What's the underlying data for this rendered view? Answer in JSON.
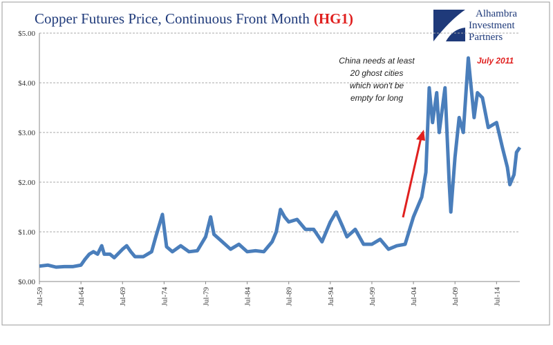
{
  "chart_data": {
    "type": "line",
    "title": "Copper Futures Price, Continuous Front Month",
    "title_code": "(HG1)",
    "logo": [
      "Alhambra",
      "Investment",
      "Partners"
    ],
    "annotations": [
      "China needs at least",
      "20 ghost cities",
      "which won't be",
      "empty for long"
    ],
    "peak_label": "July 2011",
    "x": [
      1959.5,
      1960.5,
      1961.5,
      1962.5,
      1963.5,
      1964.5,
      1965,
      1965.5,
      1966,
      1966.5,
      1967,
      1967.3,
      1968,
      1968.5,
      1969.5,
      1970,
      1970.5,
      1971,
      1972,
      1973,
      1973.5,
      1974.3,
      1974.8,
      1975.5,
      1976.5,
      1977.5,
      1978.5,
      1979.5,
      1980.1,
      1980.5,
      1981.5,
      1982.5,
      1983.5,
      1984.5,
      1985.5,
      1986.5,
      1987.5,
      1988,
      1988.5,
      1989,
      1989.5,
      1990.5,
      1991.5,
      1992.5,
      1993.5,
      1994.5,
      1995.2,
      1996,
      1996.5,
      1997.5,
      1998.5,
      1999.5,
      2000.5,
      2001.5,
      2002.5,
      2003.5,
      2004.5,
      2005.5,
      2006,
      2006.4,
      2006.8,
      2007.3,
      2007.6,
      2008.3,
      2008.8,
      2009,
      2009.5,
      2010,
      2010.5,
      2011.1,
      2011.8,
      2012.2,
      2012.8,
      2013.5,
      2014.5,
      2015.2,
      2015.8,
      2016.1,
      2016.6,
      2016.9,
      2017.3
    ],
    "series": [
      {
        "name": "HG1",
        "color": "#4a7ebb",
        "values": [
          0.31,
          0.33,
          0.29,
          0.3,
          0.3,
          0.33,
          0.45,
          0.55,
          0.6,
          0.55,
          0.72,
          0.55,
          0.55,
          0.48,
          0.65,
          0.72,
          0.6,
          0.5,
          0.5,
          0.6,
          0.9,
          1.35,
          0.7,
          0.6,
          0.72,
          0.6,
          0.62,
          0.9,
          1.3,
          0.95,
          0.8,
          0.65,
          0.75,
          0.6,
          0.62,
          0.6,
          0.8,
          1.0,
          1.45,
          1.3,
          1.2,
          1.25,
          1.05,
          1.05,
          0.8,
          1.2,
          1.4,
          1.1,
          0.9,
          1.05,
          0.75,
          0.75,
          0.85,
          0.65,
          0.72,
          0.75,
          1.3,
          1.7,
          2.2,
          3.9,
          3.2,
          3.8,
          3.0,
          3.9,
          2.0,
          1.4,
          2.5,
          3.3,
          3.0,
          4.5,
          3.3,
          3.8,
          3.7,
          3.1,
          3.2,
          2.7,
          2.3,
          1.95,
          2.15,
          2.6,
          2.7
        ]
      }
    ],
    "xlim": [
      1959.5,
      2017.3
    ],
    "xticks": [
      {
        "value": 1959.5,
        "label": "Jul-59"
      },
      {
        "value": 1964.5,
        "label": "Jul-64"
      },
      {
        "value": 1969.5,
        "label": "Jul-69"
      },
      {
        "value": 1974.5,
        "label": "Jul-74"
      },
      {
        "value": 1979.5,
        "label": "Jul-79"
      },
      {
        "value": 1984.5,
        "label": "Jul-84"
      },
      {
        "value": 1989.5,
        "label": "Jul-89"
      },
      {
        "value": 1994.5,
        "label": "Jul-94"
      },
      {
        "value": 1999.5,
        "label": "Jul-99"
      },
      {
        "value": 2004.5,
        "label": "Jul-04"
      },
      {
        "value": 2009.5,
        "label": "Jul-09"
      },
      {
        "value": 2014.5,
        "label": "Jul-14"
      }
    ],
    "ylim": [
      0,
      5
    ],
    "yticks": [
      {
        "value": 0,
        "label": "$0.00"
      },
      {
        "value": 1,
        "label": "$1.00"
      },
      {
        "value": 2,
        "label": "$2.00"
      },
      {
        "value": 3,
        "label": "$3.00"
      },
      {
        "value": 4,
        "label": "$4.00"
      },
      {
        "value": 5,
        "label": "$5.00"
      }
    ],
    "grid": true
  }
}
